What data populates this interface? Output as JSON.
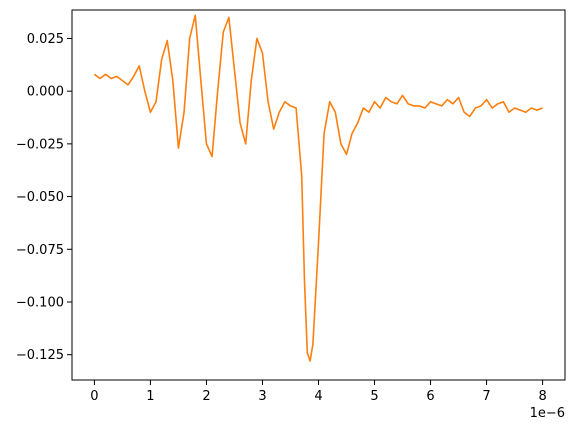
{
  "chart_data": {
    "type": "line",
    "title": "",
    "xlabel": "",
    "ylabel": "",
    "x_offset_label": "1e−6",
    "xlim": [
      -0.4,
      8.4
    ],
    "ylim": [
      -0.137,
      0.0385
    ],
    "grid": false,
    "legend": "none",
    "x_ticks": [
      {
        "value": 0,
        "label": "0"
      },
      {
        "value": 1,
        "label": "1"
      },
      {
        "value": 2,
        "label": "2"
      },
      {
        "value": 3,
        "label": "3"
      },
      {
        "value": 4,
        "label": "4"
      },
      {
        "value": 5,
        "label": "5"
      },
      {
        "value": 6,
        "label": "6"
      },
      {
        "value": 7,
        "label": "7"
      },
      {
        "value": 8,
        "label": "8"
      }
    ],
    "y_ticks": [
      {
        "value": 0.025,
        "label": "0.025"
      },
      {
        "value": 0.0,
        "label": "0.000"
      },
      {
        "value": -0.025,
        "label": "−0.025"
      },
      {
        "value": -0.05,
        "label": "−0.050"
      },
      {
        "value": -0.075,
        "label": "−0.075"
      },
      {
        "value": -0.1,
        "label": "−0.100"
      },
      {
        "value": -0.125,
        "label": "−0.125"
      }
    ],
    "series": [
      {
        "color": "#ff7f0e",
        "points": [
          [
            0.0,
            0.008
          ],
          [
            0.1,
            0.006
          ],
          [
            0.2,
            0.008
          ],
          [
            0.3,
            0.006
          ],
          [
            0.4,
            0.007
          ],
          [
            0.5,
            0.005
          ],
          [
            0.6,
            0.003
          ],
          [
            0.7,
            0.007
          ],
          [
            0.8,
            0.012
          ],
          [
            0.9,
            0.0
          ],
          [
            1.0,
            -0.01
          ],
          [
            1.1,
            -0.005
          ],
          [
            1.2,
            0.015
          ],
          [
            1.3,
            0.024
          ],
          [
            1.4,
            0.005
          ],
          [
            1.5,
            -0.027
          ],
          [
            1.6,
            -0.01
          ],
          [
            1.7,
            0.025
          ],
          [
            1.8,
            0.036
          ],
          [
            1.9,
            0.005
          ],
          [
            2.0,
            -0.025
          ],
          [
            2.1,
            -0.031
          ],
          [
            2.2,
            0.0
          ],
          [
            2.3,
            0.028
          ],
          [
            2.4,
            0.035
          ],
          [
            2.5,
            0.01
          ],
          [
            2.6,
            -0.015
          ],
          [
            2.7,
            -0.025
          ],
          [
            2.8,
            0.005
          ],
          [
            2.9,
            0.025
          ],
          [
            3.0,
            0.018
          ],
          [
            3.1,
            -0.005
          ],
          [
            3.2,
            -0.018
          ],
          [
            3.3,
            -0.01
          ],
          [
            3.4,
            -0.005
          ],
          [
            3.5,
            -0.007
          ],
          [
            3.6,
            -0.008
          ],
          [
            3.7,
            -0.04
          ],
          [
            3.75,
            -0.09
          ],
          [
            3.8,
            -0.124
          ],
          [
            3.85,
            -0.128
          ],
          [
            3.9,
            -0.12
          ],
          [
            4.0,
            -0.072
          ],
          [
            4.1,
            -0.02
          ],
          [
            4.2,
            -0.005
          ],
          [
            4.3,
            -0.01
          ],
          [
            4.4,
            -0.025
          ],
          [
            4.5,
            -0.03
          ],
          [
            4.6,
            -0.02
          ],
          [
            4.7,
            -0.015
          ],
          [
            4.8,
            -0.008
          ],
          [
            4.9,
            -0.01
          ],
          [
            5.0,
            -0.005
          ],
          [
            5.1,
            -0.008
          ],
          [
            5.2,
            -0.003
          ],
          [
            5.3,
            -0.005
          ],
          [
            5.4,
            -0.006
          ],
          [
            5.5,
            -0.002
          ],
          [
            5.6,
            -0.006
          ],
          [
            5.7,
            -0.007
          ],
          [
            5.8,
            -0.007
          ],
          [
            5.9,
            -0.008
          ],
          [
            6.0,
            -0.005
          ],
          [
            6.1,
            -0.006
          ],
          [
            6.2,
            -0.007
          ],
          [
            6.3,
            -0.004
          ],
          [
            6.4,
            -0.006
          ],
          [
            6.5,
            -0.003
          ],
          [
            6.6,
            -0.01
          ],
          [
            6.7,
            -0.012
          ],
          [
            6.8,
            -0.008
          ],
          [
            6.9,
            -0.007
          ],
          [
            7.0,
            -0.004
          ],
          [
            7.1,
            -0.008
          ],
          [
            7.2,
            -0.006
          ],
          [
            7.3,
            -0.005
          ],
          [
            7.4,
            -0.01
          ],
          [
            7.5,
            -0.008
          ],
          [
            7.6,
            -0.009
          ],
          [
            7.7,
            -0.01
          ],
          [
            7.8,
            -0.008
          ],
          [
            7.9,
            -0.009
          ],
          [
            8.0,
            -0.008
          ]
        ]
      }
    ]
  }
}
